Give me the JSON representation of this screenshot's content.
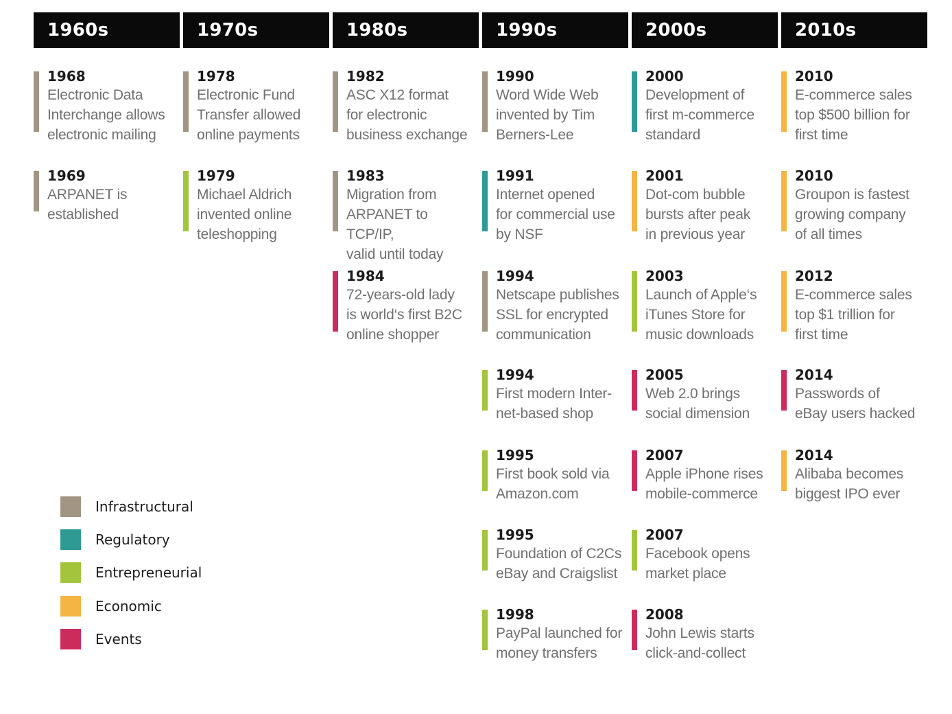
{
  "colors": {
    "infrastructural": "#a39584",
    "regulatory": "#2e9a93",
    "entrepreneurial": "#a3c43c",
    "economic": "#f5b545",
    "events": "#cc2c5c"
  },
  "decades": [
    {
      "label": "1960s",
      "entries": [
        {
          "year": "1968",
          "text": "Electronic Data\nInterchange allows\nelectronic mailing",
          "category": "infrastructural"
        },
        {
          "year": "1969",
          "text": "ARPANET is\nestablished",
          "category": "infrastructural"
        }
      ]
    },
    {
      "label": "1970s",
      "entries": [
        {
          "year": "1978",
          "text": "Electronic Fund\nTransfer allowed\nonline payments",
          "category": "infrastructural"
        },
        {
          "year": "1979",
          "text": "Michael Aldrich\ninvented online\nteleshopping",
          "category": "entrepreneurial"
        }
      ]
    },
    {
      "label": "1980s",
      "entries": [
        {
          "year": "1982",
          "text": "ASC X12 format\nfor electronic\nbusiness exchange",
          "category": "infrastructural"
        },
        {
          "year": "1983",
          "text": "Migration from\nARPANET to TCP/IP,\nvalid until today",
          "category": "infrastructural"
        },
        {
          "year": "1984",
          "text": "72-years-old lady\nis world‘s first B2C\nonline shopper",
          "category": "events"
        }
      ]
    },
    {
      "label": "1990s",
      "entries": [
        {
          "year": "1990",
          "text": "Word Wide Web\ninvented by Tim\nBerners-Lee",
          "category": "infrastructural"
        },
        {
          "year": "1991",
          "text": "Internet opened\nfor commercial use\nby NSF",
          "category": "regulatory"
        },
        {
          "year": "1994",
          "text": "Netscape publishes\nSSL for encrypted\ncommunication",
          "category": "infrastructural"
        },
        {
          "year": "1994",
          "text": "First modern Inter-\nnet-based shop",
          "category": "entrepreneurial"
        },
        {
          "year": "1995",
          "text": "First book sold via\nAmazon.com",
          "category": "entrepreneurial"
        },
        {
          "year": "1995",
          "text": "Foundation of C2Cs\neBay and Craigslist",
          "category": "entrepreneurial"
        },
        {
          "year": "1998",
          "text": "PayPal launched for\nmoney transfers",
          "category": "entrepreneurial"
        }
      ]
    },
    {
      "label": "2000s",
      "entries": [
        {
          "year": "2000",
          "text": "Development of\nfirst m-commerce\nstandard",
          "category": "regulatory"
        },
        {
          "year": "2001",
          "text": "Dot-com bubble\nbursts after peak\nin previous year",
          "category": "economic"
        },
        {
          "year": "2003",
          "text": "Launch of Apple‘s\niTunes Store for\nmusic downloads",
          "category": "entrepreneurial"
        },
        {
          "year": "2005",
          "text": "Web 2.0 brings\nsocial dimension",
          "category": "events"
        },
        {
          "year": "2007",
          "text": "Apple iPhone rises\nmobile-commerce",
          "category": "events"
        },
        {
          "year": "2007",
          "text": "Facebook opens\nmarket place",
          "category": "entrepreneurial"
        },
        {
          "year": "2008",
          "text": "John Lewis starts\nclick-and-collect",
          "category": "events"
        }
      ]
    },
    {
      "label": "2010s",
      "entries": [
        {
          "year": "2010",
          "text": "E-commerce sales\ntop $500 billion for\nfirst time",
          "category": "economic"
        },
        {
          "year": "2010",
          "text": "Groupon is fastest\ngrowing company\nof all times",
          "category": "economic"
        },
        {
          "year": "2012",
          "text": "E-commerce sales\ntop $1 trillion for\nfirst time",
          "category": "economic"
        },
        {
          "year": "2014",
          "text": "Passwords of\neBay users hacked",
          "category": "events"
        },
        {
          "year": "2014",
          "text": "Alibaba becomes\nbiggest IPO ever",
          "category": "economic"
        }
      ]
    }
  ],
  "legend": [
    {
      "label": "Infrastructural",
      "category": "infrastructural"
    },
    {
      "label": "Regulatory",
      "category": "regulatory"
    },
    {
      "label": "Entrepreneurial",
      "category": "entrepreneurial"
    },
    {
      "label": "Economic",
      "category": "economic"
    },
    {
      "label": "Events",
      "category": "events"
    }
  ]
}
